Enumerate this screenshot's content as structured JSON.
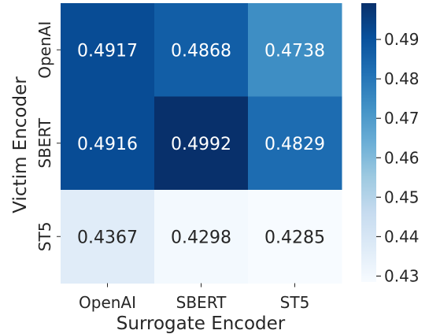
{
  "chart_data": {
    "type": "heatmap",
    "title": "",
    "xlabel": "Surrogate Encoder",
    "ylabel": "Victim Encoder",
    "x_categories": [
      "OpenAI",
      "SBERT",
      "ST5"
    ],
    "y_categories": [
      "OpenAI",
      "SBERT",
      "ST5"
    ],
    "values": [
      [
        0.4917,
        0.4868,
        0.4738
      ],
      [
        0.4916,
        0.4992,
        0.4829
      ],
      [
        0.4367,
        0.4298,
        0.4285
      ]
    ],
    "value_labels": [
      [
        "0.4917",
        "0.4868",
        "0.4738"
      ],
      [
        "0.4916",
        "0.4992",
        "0.4829"
      ],
      [
        "0.4367",
        "0.4298",
        "0.4285"
      ]
    ],
    "colormap": "Blues",
    "colorbar": {
      "range": [
        0.4285,
        0.4992
      ],
      "ticks": [
        0.43,
        0.44,
        0.45,
        0.46,
        0.47,
        0.48,
        0.49
      ],
      "tick_labels": [
        "0.43",
        "0.44",
        "0.45",
        "0.46",
        "0.47",
        "0.48",
        "0.49"
      ]
    }
  }
}
